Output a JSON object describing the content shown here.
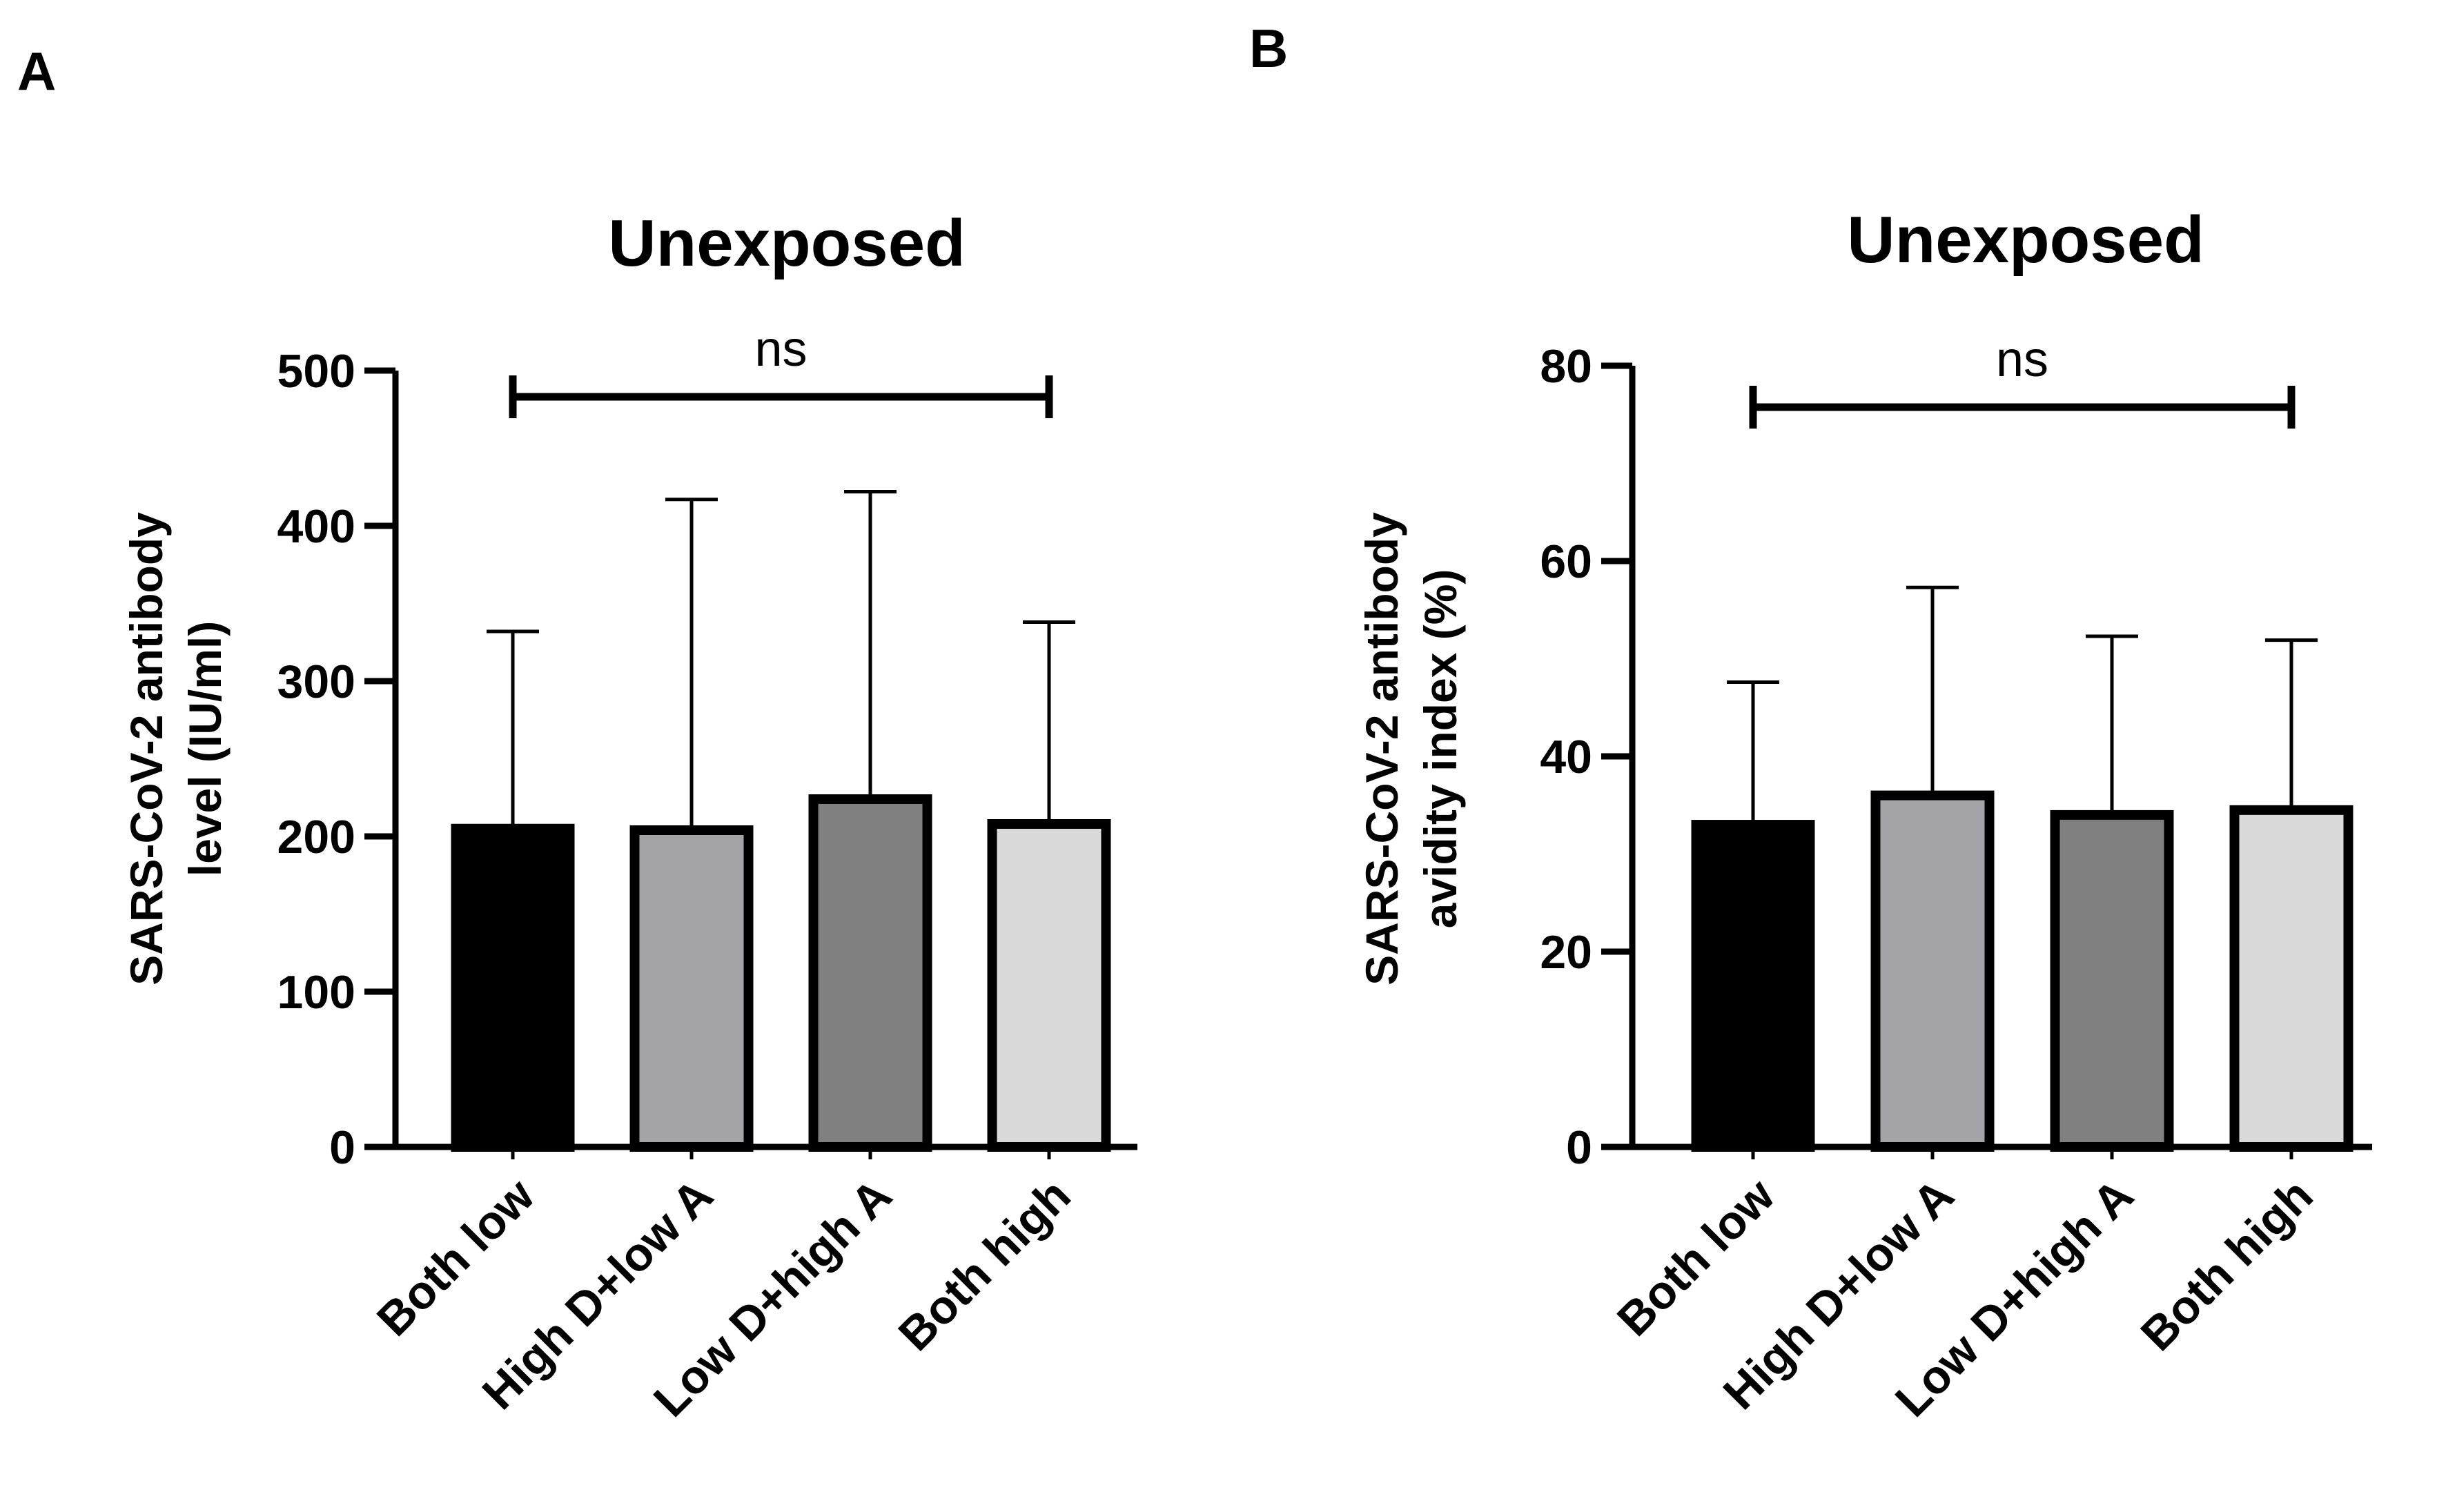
{
  "chart_data": [
    {
      "panel": "A",
      "type": "bar",
      "title": "Unexposed",
      "ylabel_lines": [
        "SARS-CoV-2 antibody",
        "level (IU/ml)"
      ],
      "xlabel": "",
      "ylim": [
        0,
        500
      ],
      "yticks": [
        0,
        100,
        200,
        300,
        400,
        500
      ],
      "categories": [
        "Both low",
        "High D+low A",
        "Low D+high A",
        "Both high"
      ],
      "values": [
        205,
        204,
        224,
        208
      ],
      "errors_upper": [
        332,
        417,
        422,
        338
      ],
      "colors": [
        "#000000",
        "#a4a3a8",
        "#808080",
        "#d9d9d9"
      ],
      "significance": {
        "label": "ns",
        "from": "Both low",
        "to": "Both high"
      }
    },
    {
      "panel": "B",
      "type": "bar",
      "title": "Unexposed",
      "ylabel_lines": [
        "SARS-CoV-2 antibody",
        "avidity index (%)"
      ],
      "xlabel": "",
      "ylim": [
        0,
        80
      ],
      "yticks": [
        0,
        20,
        40,
        60,
        80
      ],
      "categories": [
        "Both low",
        "High D+low A",
        "Low D+high A",
        "Both high"
      ],
      "values": [
        33,
        36,
        34,
        34.5
      ],
      "errors_upper": [
        47.6,
        57.3,
        52.3,
        51.9
      ],
      "colors": [
        "#000000",
        "#a4a3a8",
        "#808080",
        "#d9d9d9"
      ],
      "significance": {
        "label": "ns",
        "from": "Both low",
        "to": "Both high"
      }
    }
  ]
}
